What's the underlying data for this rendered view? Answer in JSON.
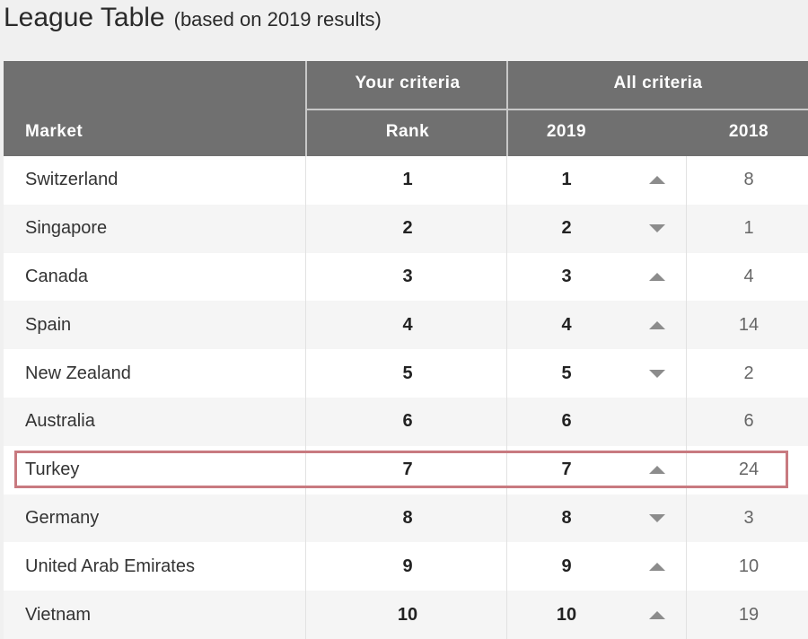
{
  "title": "League Table",
  "subtitle": "(based on 2019 results)",
  "header": {
    "your_criteria": "Your criteria",
    "all_criteria": "All criteria",
    "market": "Market",
    "rank": "Rank",
    "y2019": "2019",
    "y2018": "2018"
  },
  "rows": [
    {
      "market": "Switzerland",
      "rank": "1",
      "y2019": "1",
      "trend": "up",
      "y2018": "8"
    },
    {
      "market": "Singapore",
      "rank": "2",
      "y2019": "2",
      "trend": "down",
      "y2018": "1"
    },
    {
      "market": "Canada",
      "rank": "3",
      "y2019": "3",
      "trend": "up",
      "y2018": "4"
    },
    {
      "market": "Spain",
      "rank": "4",
      "y2019": "4",
      "trend": "up",
      "y2018": "14"
    },
    {
      "market": "New Zealand",
      "rank": "5",
      "y2019": "5",
      "trend": "down",
      "y2018": "2"
    },
    {
      "market": "Australia",
      "rank": "6",
      "y2019": "6",
      "trend": "none",
      "y2018": "6"
    },
    {
      "market": "Turkey",
      "rank": "7",
      "y2019": "7",
      "trend": "up",
      "y2018": "24",
      "highlighted": true
    },
    {
      "market": "Germany",
      "rank": "8",
      "y2019": "8",
      "trend": "down",
      "y2018": "3"
    },
    {
      "market": "United Arab Emirates",
      "rank": "9",
      "y2019": "9",
      "trend": "up",
      "y2018": "10"
    },
    {
      "market": "Vietnam",
      "rank": "10",
      "y2019": "10",
      "trend": "up",
      "y2018": "19"
    }
  ],
  "colors": {
    "header_bg": "#707070",
    "highlight_border": "#c87a80"
  }
}
